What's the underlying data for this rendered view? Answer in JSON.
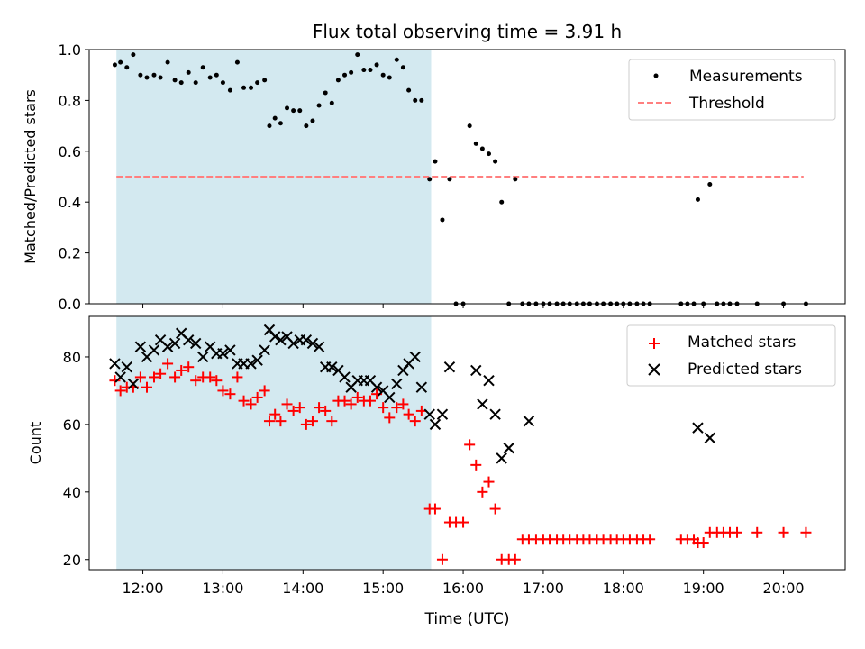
{
  "chart_data": [
    {
      "type": "scatter",
      "title": "Flux total observing time = 3.91 h",
      "ylabel": "Matched/Predicted stars",
      "xlabel": "",
      "ylim": [
        0,
        1.0
      ],
      "xlim_hours": [
        11.33,
        20.77
      ],
      "yticks": [
        0.0,
        0.2,
        0.4,
        0.6,
        0.8,
        1.0
      ],
      "ytick_labels": [
        "0.0",
        "0.2",
        "0.4",
        "0.6",
        "0.8",
        "1.0"
      ],
      "xticks": [
        12,
        13,
        14,
        15,
        16,
        17,
        18,
        19,
        20
      ],
      "shaded_span_hours": [
        11.67,
        15.6
      ],
      "shaded_color": "#d3e9f0",
      "legend_location": "top-right",
      "series": [
        {
          "name": "Measurements",
          "marker": "dot",
          "color": "#000000",
          "x": [
            11.65,
            11.72,
            11.8,
            11.88,
            11.97,
            12.05,
            12.14,
            12.22,
            12.31,
            12.4,
            12.48,
            12.57,
            12.66,
            12.75,
            12.84,
            12.92,
            13.0,
            13.09,
            13.18,
            13.26,
            13.35,
            13.43,
            13.52,
            13.58,
            13.65,
            13.72,
            13.8,
            13.88,
            13.96,
            14.04,
            14.12,
            14.2,
            14.28,
            14.36,
            14.44,
            14.52,
            14.6,
            14.68,
            14.76,
            14.84,
            14.92,
            15.0,
            15.08,
            15.17,
            15.25,
            15.32,
            15.4,
            15.48,
            15.58,
            15.65,
            15.74,
            15.83,
            15.91,
            16.0,
            16.08,
            16.16,
            16.24,
            16.32,
            16.4,
            16.48,
            16.57,
            16.65,
            16.74,
            16.82,
            16.91,
            17.0,
            17.08,
            17.17,
            17.25,
            17.33,
            17.42,
            17.5,
            17.58,
            17.67,
            17.75,
            17.84,
            17.92,
            18.0,
            18.08,
            18.17,
            18.25,
            18.33,
            18.72,
            18.8,
            18.88,
            18.93,
            19.0,
            19.08,
            19.17,
            19.25,
            19.33,
            19.42,
            19.67,
            20.0,
            20.28
          ],
          "y": [
            0.94,
            0.95,
            0.93,
            0.98,
            0.9,
            0.89,
            0.9,
            0.89,
            0.95,
            0.88,
            0.87,
            0.91,
            0.87,
            0.93,
            0.89,
            0.9,
            0.87,
            0.84,
            0.95,
            0.85,
            0.85,
            0.87,
            0.88,
            0.7,
            0.73,
            0.71,
            0.77,
            0.76,
            0.76,
            0.7,
            0.72,
            0.78,
            0.83,
            0.79,
            0.88,
            0.9,
            0.91,
            0.98,
            0.92,
            0.92,
            0.94,
            0.9,
            0.89,
            0.96,
            0.93,
            0.84,
            0.8,
            0.8,
            0.49,
            0.56,
            0.33,
            0.49,
            0.0,
            0.0,
            0.7,
            0.63,
            0.61,
            0.59,
            0.56,
            0.4,
            0.0,
            0.49,
            0.0,
            0.0,
            0.0,
            0.0,
            0.0,
            0.0,
            0.0,
            0.0,
            0.0,
            0.0,
            0.0,
            0.0,
            0.0,
            0.0,
            0.0,
            0.0,
            0.0,
            0.0,
            0.0,
            0.0,
            0.0,
            0.0,
            0.0,
            0.41,
            0.0,
            0.47,
            0.0,
            0.0,
            0.0,
            0.0,
            0.0,
            0.0,
            0.0
          ]
        },
        {
          "name": "Threshold",
          "marker": "dashed-line",
          "color": "#ff7f7f",
          "x": [
            11.67,
            20.25
          ],
          "y": [
            0.5,
            0.5
          ]
        }
      ]
    },
    {
      "type": "scatter",
      "title": "",
      "ylabel": "Count",
      "xlabel": "Time (UTC)",
      "ylim": [
        17,
        92
      ],
      "xlim_hours": [
        11.33,
        20.77
      ],
      "yticks": [
        20,
        40,
        60,
        80
      ],
      "ytick_labels": [
        "20",
        "40",
        "60",
        "80"
      ],
      "xticks": [
        12,
        13,
        14,
        15,
        16,
        17,
        18,
        19,
        20
      ],
      "xtick_labels": [
        "12:00",
        "13:00",
        "14:00",
        "15:00",
        "16:00",
        "17:00",
        "18:00",
        "19:00",
        "20:00"
      ],
      "shaded_span_hours": [
        11.67,
        15.6
      ],
      "shaded_color": "#d3e9f0",
      "legend_location": "top-right",
      "series": [
        {
          "name": "Matched stars",
          "marker": "plus",
          "color": "#ff0000",
          "x": [
            11.65,
            11.72,
            11.8,
            11.88,
            11.97,
            12.05,
            12.14,
            12.22,
            12.31,
            12.4,
            12.48,
            12.57,
            12.66,
            12.75,
            12.84,
            12.92,
            13.0,
            13.09,
            13.18,
            13.26,
            13.35,
            13.43,
            13.52,
            13.58,
            13.65,
            13.72,
            13.8,
            13.88,
            13.96,
            14.04,
            14.12,
            14.2,
            14.28,
            14.36,
            14.44,
            14.52,
            14.6,
            14.68,
            14.76,
            14.84,
            14.92,
            15.0,
            15.08,
            15.17,
            15.25,
            15.32,
            15.4,
            15.48,
            15.58,
            15.65,
            15.74,
            15.83,
            15.91,
            16.0,
            16.08,
            16.16,
            16.24,
            16.32,
            16.4,
            16.48,
            16.57,
            16.65,
            16.74,
            16.82,
            16.91,
            17.0,
            17.08,
            17.17,
            17.25,
            17.33,
            17.42,
            17.5,
            17.58,
            17.67,
            17.75,
            17.84,
            17.92,
            18.0,
            18.08,
            18.17,
            18.25,
            18.33,
            18.72,
            18.8,
            18.88,
            18.93,
            19.0,
            19.08,
            19.17,
            19.25,
            19.33,
            19.42,
            19.67,
            20.0,
            20.28
          ],
          "y": [
            73,
            70,
            71,
            71,
            74,
            71,
            74,
            75,
            78,
            74,
            76,
            77,
            73,
            74,
            74,
            73,
            70,
            69,
            74,
            67,
            66,
            68,
            70,
            61,
            63,
            61,
            66,
            64,
            65,
            60,
            61,
            65,
            64,
            61,
            67,
            67,
            66,
            68,
            67,
            67,
            69,
            65,
            62,
            65,
            66,
            63,
            61,
            64,
            35,
            35,
            20,
            31,
            31,
            31,
            54,
            48,
            40,
            43,
            35,
            20,
            20,
            20,
            26,
            26,
            26,
            26,
            26,
            26,
            26,
            26,
            26,
            26,
            26,
            26,
            26,
            26,
            26,
            26,
            26,
            26,
            26,
            26,
            26,
            26,
            26,
            25,
            25,
            28,
            28,
            28,
            28,
            28,
            28,
            28,
            28
          ]
        },
        {
          "name": "Predicted stars",
          "marker": "x",
          "color": "#000000",
          "x": [
            11.65,
            11.72,
            11.8,
            11.88,
            11.97,
            12.05,
            12.14,
            12.22,
            12.31,
            12.4,
            12.48,
            12.57,
            12.66,
            12.75,
            12.84,
            12.92,
            13.0,
            13.09,
            13.18,
            13.26,
            13.35,
            13.43,
            13.52,
            13.58,
            13.65,
            13.72,
            13.8,
            13.88,
            13.96,
            14.04,
            14.12,
            14.2,
            14.28,
            14.36,
            14.44,
            14.52,
            14.6,
            14.68,
            14.76,
            14.84,
            14.92,
            15.0,
            15.08,
            15.17,
            15.25,
            15.32,
            15.4,
            15.48,
            15.58,
            15.65,
            15.74,
            15.83,
            16.16,
            16.24,
            16.32,
            16.4,
            16.48,
            16.57,
            16.82,
            18.93,
            19.08
          ],
          "y": [
            78,
            74,
            77,
            72,
            83,
            80,
            82,
            85,
            83,
            84,
            87,
            85,
            84,
            80,
            83,
            81,
            81,
            82,
            78,
            78,
            78,
            79,
            82,
            88,
            86,
            85,
            86,
            84,
            85,
            85,
            84,
            83,
            77,
            77,
            76,
            74,
            71,
            73,
            73,
            73,
            71,
            70,
            68,
            72,
            76,
            78,
            80,
            71,
            63,
            60,
            63,
            77,
            76,
            66,
            73,
            63,
            50,
            53,
            61,
            59,
            56
          ]
        }
      ]
    }
  ],
  "legend": {
    "top": [
      "Measurements",
      "Threshold"
    ],
    "bottom": [
      "Matched stars",
      "Predicted stars"
    ]
  }
}
